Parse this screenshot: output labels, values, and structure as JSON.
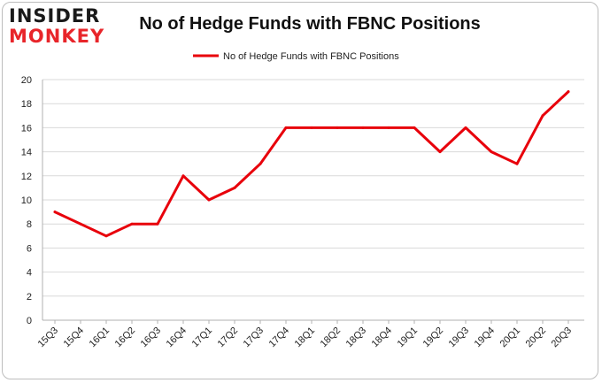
{
  "logo": {
    "line1": "INSIDER",
    "line2": "MONKEY"
  },
  "colors": {
    "series": "#e8000b",
    "grid": "#d9d9d9",
    "brand_red": "#e8252a"
  },
  "chart_data": {
    "type": "line",
    "title": "No of Hedge Funds with FBNC Positions",
    "categories": [
      "15Q3",
      "15Q4",
      "16Q1",
      "16Q2",
      "16Q3",
      "16Q4",
      "17Q1",
      "17Q2",
      "17Q3",
      "17Q4",
      "18Q1",
      "18Q2",
      "18Q3",
      "18Q4",
      "19Q1",
      "19Q2",
      "19Q3",
      "19Q4",
      "20Q1",
      "20Q2",
      "20Q3"
    ],
    "series": [
      {
        "name": "No of Hedge Funds with FBNC Positions",
        "values": [
          9,
          8,
          7,
          8,
          8,
          12,
          10,
          11,
          13,
          16,
          16,
          16,
          16,
          16,
          16,
          14,
          16,
          14,
          13,
          17,
          19
        ]
      }
    ],
    "ylim": [
      0,
      20
    ],
    "yticks": [
      0,
      2,
      4,
      6,
      8,
      10,
      12,
      14,
      16,
      18,
      20
    ],
    "grid": true,
    "legend": "top-center",
    "xlabel": "",
    "ylabel": ""
  }
}
